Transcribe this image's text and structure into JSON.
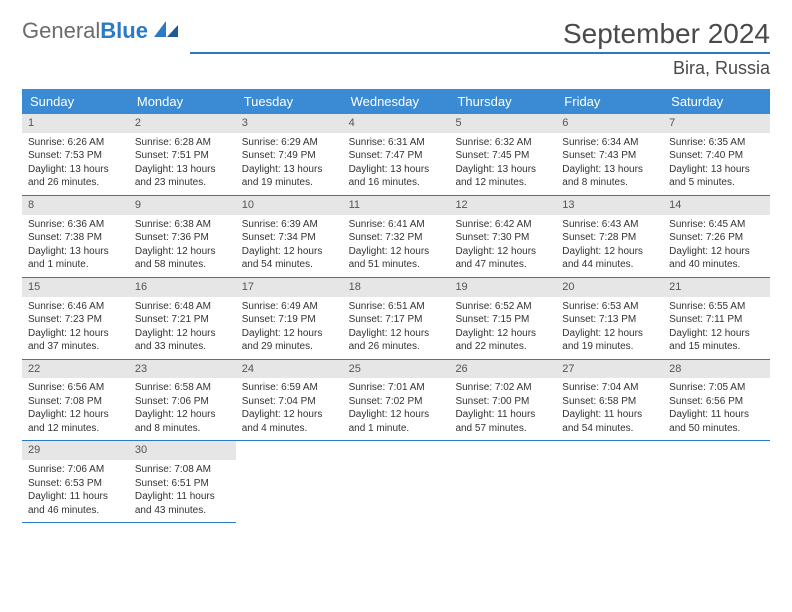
{
  "brand": {
    "name_a": "General",
    "name_b": "Blue"
  },
  "title": "September 2024",
  "location": "Bira, Russia",
  "colors": {
    "accent": "#2b7ac7",
    "header_bg": "#3b8bd4",
    "daynum_bg": "#e6e6e6",
    "text": "#333333",
    "muted": "#6b6b6b"
  },
  "days_of_week": [
    "Sunday",
    "Monday",
    "Tuesday",
    "Wednesday",
    "Thursday",
    "Friday",
    "Saturday"
  ],
  "weeks": [
    [
      {
        "n": "1",
        "sunrise": "6:26 AM",
        "sunset": "7:53 PM",
        "daylight": "13 hours and 26 minutes."
      },
      {
        "n": "2",
        "sunrise": "6:28 AM",
        "sunset": "7:51 PM",
        "daylight": "13 hours and 23 minutes."
      },
      {
        "n": "3",
        "sunrise": "6:29 AM",
        "sunset": "7:49 PM",
        "daylight": "13 hours and 19 minutes."
      },
      {
        "n": "4",
        "sunrise": "6:31 AM",
        "sunset": "7:47 PM",
        "daylight": "13 hours and 16 minutes."
      },
      {
        "n": "5",
        "sunrise": "6:32 AM",
        "sunset": "7:45 PM",
        "daylight": "13 hours and 12 minutes."
      },
      {
        "n": "6",
        "sunrise": "6:34 AM",
        "sunset": "7:43 PM",
        "daylight": "13 hours and 8 minutes."
      },
      {
        "n": "7",
        "sunrise": "6:35 AM",
        "sunset": "7:40 PM",
        "daylight": "13 hours and 5 minutes."
      }
    ],
    [
      {
        "n": "8",
        "sunrise": "6:36 AM",
        "sunset": "7:38 PM",
        "daylight": "13 hours and 1 minute."
      },
      {
        "n": "9",
        "sunrise": "6:38 AM",
        "sunset": "7:36 PM",
        "daylight": "12 hours and 58 minutes."
      },
      {
        "n": "10",
        "sunrise": "6:39 AM",
        "sunset": "7:34 PM",
        "daylight": "12 hours and 54 minutes."
      },
      {
        "n": "11",
        "sunrise": "6:41 AM",
        "sunset": "7:32 PM",
        "daylight": "12 hours and 51 minutes."
      },
      {
        "n": "12",
        "sunrise": "6:42 AM",
        "sunset": "7:30 PM",
        "daylight": "12 hours and 47 minutes."
      },
      {
        "n": "13",
        "sunrise": "6:43 AM",
        "sunset": "7:28 PM",
        "daylight": "12 hours and 44 minutes."
      },
      {
        "n": "14",
        "sunrise": "6:45 AM",
        "sunset": "7:26 PM",
        "daylight": "12 hours and 40 minutes."
      }
    ],
    [
      {
        "n": "15",
        "sunrise": "6:46 AM",
        "sunset": "7:23 PM",
        "daylight": "12 hours and 37 minutes."
      },
      {
        "n": "16",
        "sunrise": "6:48 AM",
        "sunset": "7:21 PM",
        "daylight": "12 hours and 33 minutes."
      },
      {
        "n": "17",
        "sunrise": "6:49 AM",
        "sunset": "7:19 PM",
        "daylight": "12 hours and 29 minutes."
      },
      {
        "n": "18",
        "sunrise": "6:51 AM",
        "sunset": "7:17 PM",
        "daylight": "12 hours and 26 minutes."
      },
      {
        "n": "19",
        "sunrise": "6:52 AM",
        "sunset": "7:15 PM",
        "daylight": "12 hours and 22 minutes."
      },
      {
        "n": "20",
        "sunrise": "6:53 AM",
        "sunset": "7:13 PM",
        "daylight": "12 hours and 19 minutes."
      },
      {
        "n": "21",
        "sunrise": "6:55 AM",
        "sunset": "7:11 PM",
        "daylight": "12 hours and 15 minutes."
      }
    ],
    [
      {
        "n": "22",
        "sunrise": "6:56 AM",
        "sunset": "7:08 PM",
        "daylight": "12 hours and 12 minutes."
      },
      {
        "n": "23",
        "sunrise": "6:58 AM",
        "sunset": "7:06 PM",
        "daylight": "12 hours and 8 minutes."
      },
      {
        "n": "24",
        "sunrise": "6:59 AM",
        "sunset": "7:04 PM",
        "daylight": "12 hours and 4 minutes."
      },
      {
        "n": "25",
        "sunrise": "7:01 AM",
        "sunset": "7:02 PM",
        "daylight": "12 hours and 1 minute."
      },
      {
        "n": "26",
        "sunrise": "7:02 AM",
        "sunset": "7:00 PM",
        "daylight": "11 hours and 57 minutes."
      },
      {
        "n": "27",
        "sunrise": "7:04 AM",
        "sunset": "6:58 PM",
        "daylight": "11 hours and 54 minutes."
      },
      {
        "n": "28",
        "sunrise": "7:05 AM",
        "sunset": "6:56 PM",
        "daylight": "11 hours and 50 minutes."
      }
    ],
    [
      {
        "n": "29",
        "sunrise": "7:06 AM",
        "sunset": "6:53 PM",
        "daylight": "11 hours and 46 minutes."
      },
      {
        "n": "30",
        "sunrise": "7:08 AM",
        "sunset": "6:51 PM",
        "daylight": "11 hours and 43 minutes."
      },
      null,
      null,
      null,
      null,
      null
    ]
  ],
  "labels": {
    "sunrise": "Sunrise:",
    "sunset": "Sunset:",
    "daylight": "Daylight:"
  }
}
